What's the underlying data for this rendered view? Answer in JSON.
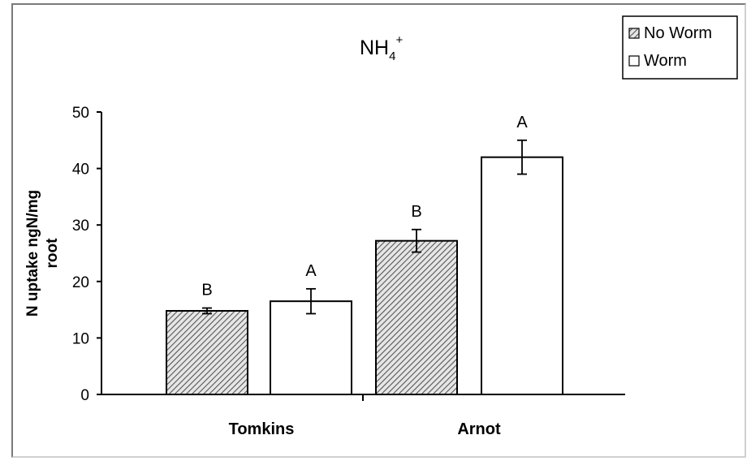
{
  "chart_data": {
    "type": "bar",
    "title": "NH",
    "title_sub": "4",
    "title_sup": "+",
    "ylabel_line1": "N uptake ngN/mg",
    "ylabel_line2": "root",
    "xlabel": "",
    "ylim": [
      0,
      50
    ],
    "yticks": [
      0,
      10,
      20,
      30,
      40,
      50
    ],
    "categories": [
      "Tomkins",
      "Arnot"
    ],
    "series": [
      {
        "name": "No Worm",
        "pattern": "hatched",
        "values": [
          14.8,
          27.2
        ],
        "errors": [
          0.5,
          2.0
        ],
        "letters": [
          "B",
          "B"
        ]
      },
      {
        "name": "Worm",
        "pattern": "open",
        "values": [
          16.5,
          42.0
        ],
        "errors": [
          2.2,
          3.0
        ],
        "letters": [
          "A",
          "A"
        ]
      }
    ],
    "legend_position": "top-right",
    "grid": false,
    "colors": {
      "bar_fill_open": "#ffffff",
      "hatch": "#555555",
      "stroke": "#000000"
    }
  }
}
